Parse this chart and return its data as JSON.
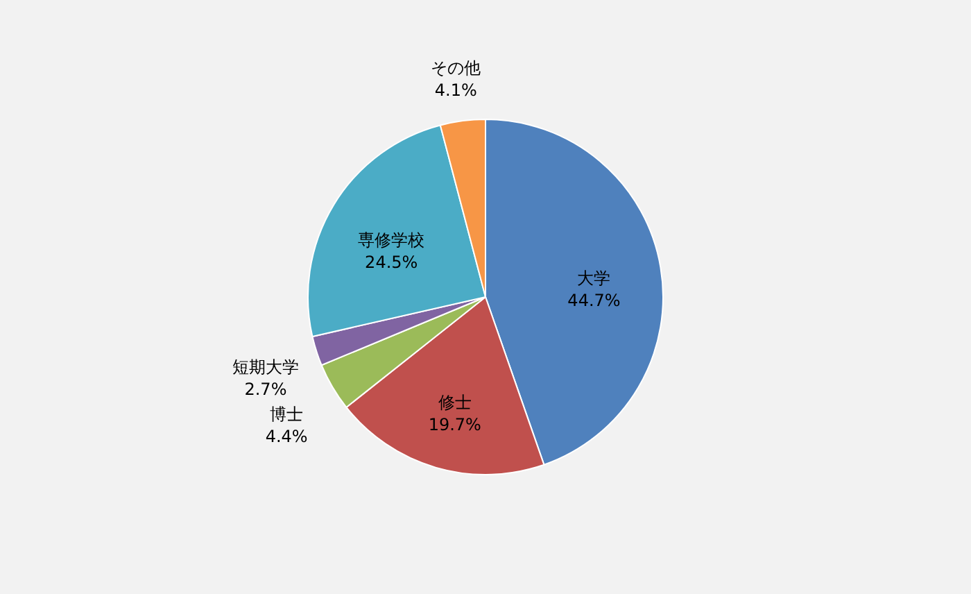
{
  "chart_data": {
    "type": "pie",
    "categories": [
      "大学",
      "修士",
      "博士",
      "短期大学",
      "専修学校",
      "その他"
    ],
    "values": [
      44.7,
      19.7,
      4.4,
      2.7,
      24.5,
      4.1
    ],
    "value_labels": [
      "44.7%",
      "19.7%",
      "4.4%",
      "2.7%",
      "24.5%",
      "4.1%"
    ],
    "colors": [
      "#4f81bd",
      "#c0504d",
      "#9bbb59",
      "#8064a2",
      "#4bacc6",
      "#f79646"
    ]
  }
}
